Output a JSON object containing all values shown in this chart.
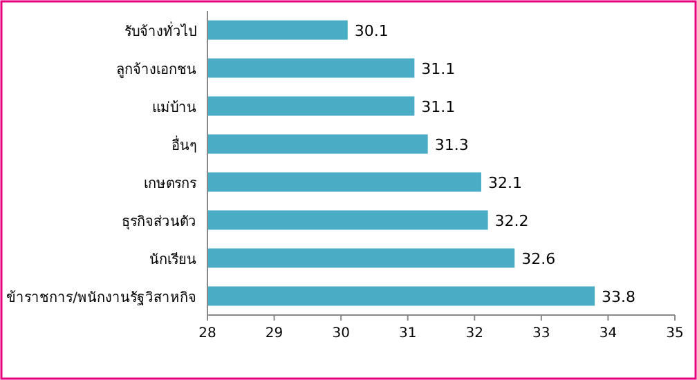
{
  "chart_data": {
    "type": "bar",
    "orientation": "horizontal",
    "categories": [
      "รับจ้างทั่วไป",
      "ลูกจ้างเอกชน",
      "แม่บ้าน",
      "อื่นๆ",
      "เกษตรกร",
      "ธุรกิจส่วนตัว",
      "นักเรียน",
      "ข้าราชการ/พนักงานรัฐวิสาหกิจ"
    ],
    "values": [
      30.1,
      31.1,
      31.1,
      31.3,
      32.1,
      32.2,
      32.6,
      33.8
    ],
    "color": "#4bacc6",
    "xlim": [
      28,
      35
    ],
    "xticks": [
      28,
      29,
      30,
      31,
      32,
      33,
      34,
      35
    ],
    "data_labels": true
  }
}
